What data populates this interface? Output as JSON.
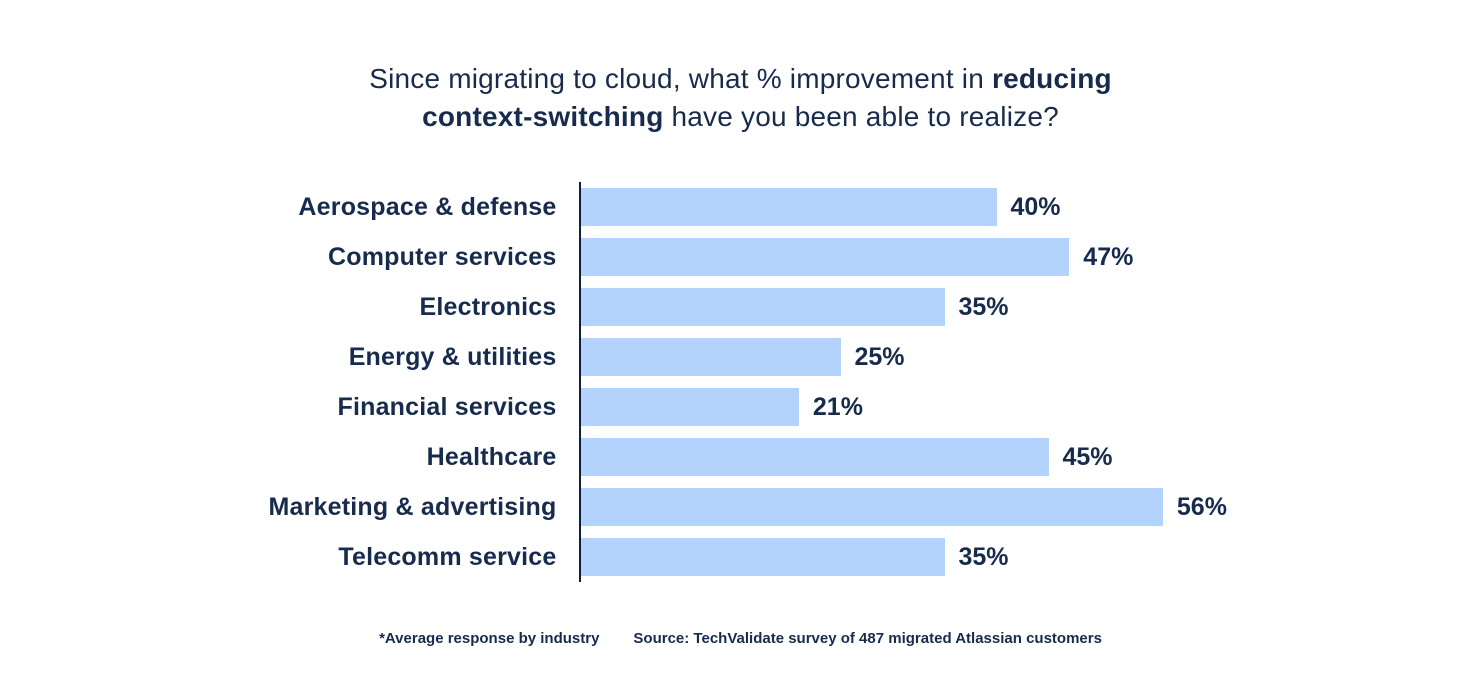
{
  "title": {
    "prefix": "Since migrating to cloud, what % improvement in ",
    "bold": "reducing context-switching",
    "suffix": " have you been able to realize?"
  },
  "chart_data": {
    "type": "bar",
    "orientation": "horizontal",
    "title": "Since migrating to cloud, what % improvement in reducing context-switching have you been able to realize?",
    "categories": [
      "Aerospace & defense",
      "Computer services",
      "Electronics",
      "Energy & utilities",
      "Financial services",
      "Healthcare",
      "Marketing & advertising",
      "Telecomm service"
    ],
    "values": [
      40,
      47,
      35,
      25,
      21,
      45,
      56,
      35
    ],
    "value_labels": [
      "40%",
      "47%",
      "35%",
      "25%",
      "21%",
      "45%",
      "56%",
      "35%"
    ],
    "xlabel": "",
    "ylabel": "",
    "xlim": [
      0,
      60
    ],
    "grid": false,
    "legend": false,
    "bar_color": "#b3d3fc",
    "text_color": "#172b4d",
    "axis_color": "#0b1f3f"
  },
  "footer": {
    "note": "*Average response by industry",
    "source": "Source: TechValidate survey of 487 migrated Atlassian customers"
  }
}
